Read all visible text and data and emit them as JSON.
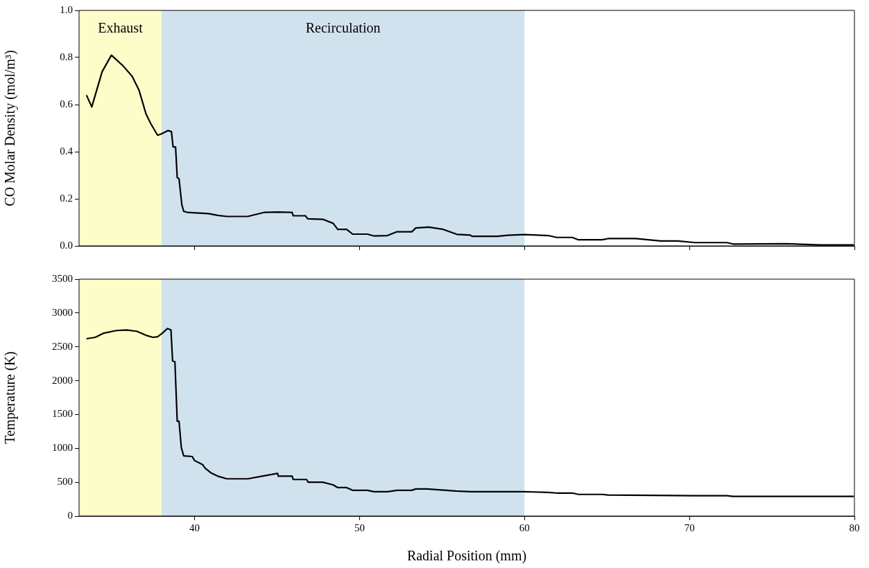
{
  "chart_data": [
    {
      "type": "line",
      "ylabel": "CO Molar Density (mol/m³)",
      "xlim": [
        33,
        80
      ],
      "xticks": [
        40,
        50,
        60,
        70,
        80
      ],
      "ylim": [
        0,
        1
      ],
      "yticks": [
        {
          "value": 0,
          "label": "0.0"
        },
        {
          "value": 0.2,
          "label": "0.2"
        },
        {
          "value": 0.4,
          "label": "0.4"
        },
        {
          "value": 0.6,
          "label": "0.6"
        },
        {
          "value": 0.8,
          "label": "0.8"
        },
        {
          "value": 1,
          "label": "1.0"
        }
      ],
      "tick_labels": "y",
      "legend": false,
      "bands": [
        {
          "axis": "x",
          "from": 33,
          "to": 38,
          "label": "Exhaust",
          "color": "#fdfdc9"
        },
        {
          "axis": "x",
          "from": 38,
          "to": 60,
          "label": "Recirculation",
          "color": "#d1e2ef"
        }
      ],
      "x": [
        33.45,
        33.77,
        34.4,
        34.96,
        35.66,
        36.22,
        36.64,
        37.06,
        37.34,
        37.76,
        37.97,
        38.39,
        38.6,
        38.7,
        38.85,
        38.95,
        39.06,
        39.23,
        39.34,
        39.58,
        40.84,
        41.4,
        41.96,
        43.22,
        44.2,
        45.04,
        45.92,
        45.98,
        46.72,
        46.86,
        47.77,
        48.4,
        48.68,
        49.22,
        49.58,
        50.48,
        50.89,
        51.7,
        52.27,
        53.17,
        53.41,
        54.2,
        55.08,
        55.9,
        56.71,
        56.82,
        58.38,
        58.99,
        60.01,
        61.44,
        61.94,
        62.9,
        63.27,
        64.7,
        65.06,
        66.74,
        68.26,
        69.28,
        70.36,
        72.27,
        72.64,
        75.9,
        77.94,
        79.97
      ],
      "series": [
        {
          "color": "#000000",
          "values": [
            0.64,
            0.59,
            0.74,
            0.81,
            0.765,
            0.72,
            0.66,
            0.56,
            0.52,
            0.47,
            0.475,
            0.49,
            0.485,
            0.42,
            0.42,
            0.29,
            0.285,
            0.175,
            0.147,
            0.142,
            0.137,
            0.13,
            0.125,
            0.125,
            0.142,
            0.144,
            0.142,
            0.128,
            0.128,
            0.115,
            0.113,
            0.096,
            0.07,
            0.07,
            0.05,
            0.05,
            0.042,
            0.044,
            0.06,
            0.06,
            0.076,
            0.08,
            0.07,
            0.049,
            0.046,
            0.041,
            0.041,
            0.045,
            0.048,
            0.044,
            0.036,
            0.036,
            0.026,
            0.026,
            0.031,
            0.031,
            0.021,
            0.021,
            0.014,
            0.014,
            0.008,
            0.009,
            0.004,
            0.004
          ]
        }
      ]
    },
    {
      "type": "line",
      "xlabel": "Radial Position (mm)",
      "ylabel": "Temperature (K)",
      "xlim": [
        33,
        80
      ],
      "xticks": [
        40,
        50,
        60,
        70,
        80
      ],
      "ylim": [
        0,
        3500
      ],
      "yticks": [
        0,
        500,
        1000,
        1500,
        2000,
        2500,
        3000,
        3500
      ],
      "legend": false,
      "bands": [
        {
          "axis": "x",
          "from": 33,
          "to": 38,
          "color": "#fdfdc9"
        },
        {
          "axis": "x",
          "from": 38,
          "to": 60,
          "color": "#d1e2ef"
        }
      ],
      "x": [
        33.45,
        33.98,
        34.47,
        35.24,
        35.87,
        36.5,
        37.06,
        37.48,
        37.76,
        38.04,
        38.35,
        38.57,
        38.67,
        38.81,
        38.95,
        39.06,
        39.2,
        39.34,
        39.86,
        40,
        40.49,
        40.63,
        40.98,
        41.4,
        41.96,
        43.22,
        44.34,
        45.04,
        45.07,
        45.92,
        45.98,
        46.79,
        46.89,
        47.77,
        48.4,
        48.68,
        49.22,
        49.58,
        50.48,
        50.89,
        51.7,
        52.27,
        53.17,
        53.41,
        54.1,
        55.84,
        56.75,
        60.01,
        61.44,
        61.94,
        62.9,
        63.27,
        64.7,
        65.06,
        70.29,
        72.27,
        72.64,
        79.97
      ],
      "series": [
        {
          "color": "#000000",
          "values": [
            2620,
            2640,
            2700,
            2740,
            2750,
            2730,
            2670,
            2640,
            2650,
            2700,
            2770,
            2750,
            2290,
            2280,
            1400,
            1400,
            1010,
            890,
            880,
            820,
            760,
            710,
            640,
            590,
            550,
            550,
            600,
            630,
            590,
            590,
            540,
            540,
            500,
            500,
            460,
            420,
            420,
            380,
            380,
            360,
            360,
            380,
            380,
            400,
            400,
            370,
            360,
            360,
            350,
            340,
            340,
            320,
            320,
            310,
            300,
            300,
            290,
            290
          ]
        }
      ]
    }
  ]
}
